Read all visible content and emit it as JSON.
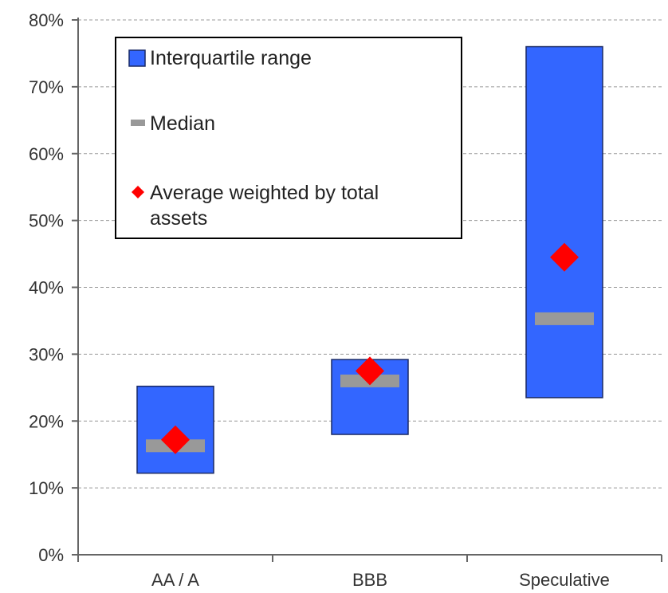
{
  "chart_data": {
    "type": "floating-bar",
    "categories": [
      "AA / A",
      "BBB",
      "Speculative"
    ],
    "y_ticks": [
      "0%",
      "10%",
      "20%",
      "30%",
      "40%",
      "50%",
      "60%",
      "70%",
      "80%"
    ],
    "ylim": [
      0,
      80
    ],
    "grid": true,
    "series": [
      {
        "name": "Interquartile range",
        "kind": "range",
        "low": [
          12.2,
          18.0,
          23.5
        ],
        "high": [
          25.2,
          29.2,
          76.0
        ]
      },
      {
        "name": "Median",
        "kind": "marker-bar",
        "values": [
          16.3,
          26.0,
          35.3
        ]
      },
      {
        "name": "Average weighted by total assets",
        "kind": "marker-diamond",
        "values": [
          17.2,
          27.5,
          44.5
        ]
      }
    ],
    "legend": {
      "placement": "top-left",
      "entries": [
        {
          "lines": [
            "Interquartile range"
          ]
        },
        {
          "lines": [
            "Median"
          ]
        },
        {
          "lines": [
            "Average weighted by total",
            "assets"
          ]
        }
      ]
    },
    "colors": {
      "range_fill": "#3366FF",
      "range_stroke": "#1A2A66",
      "median": "#999999",
      "average": "#FF0000",
      "grid": "#999999",
      "axis": "#666666"
    }
  }
}
